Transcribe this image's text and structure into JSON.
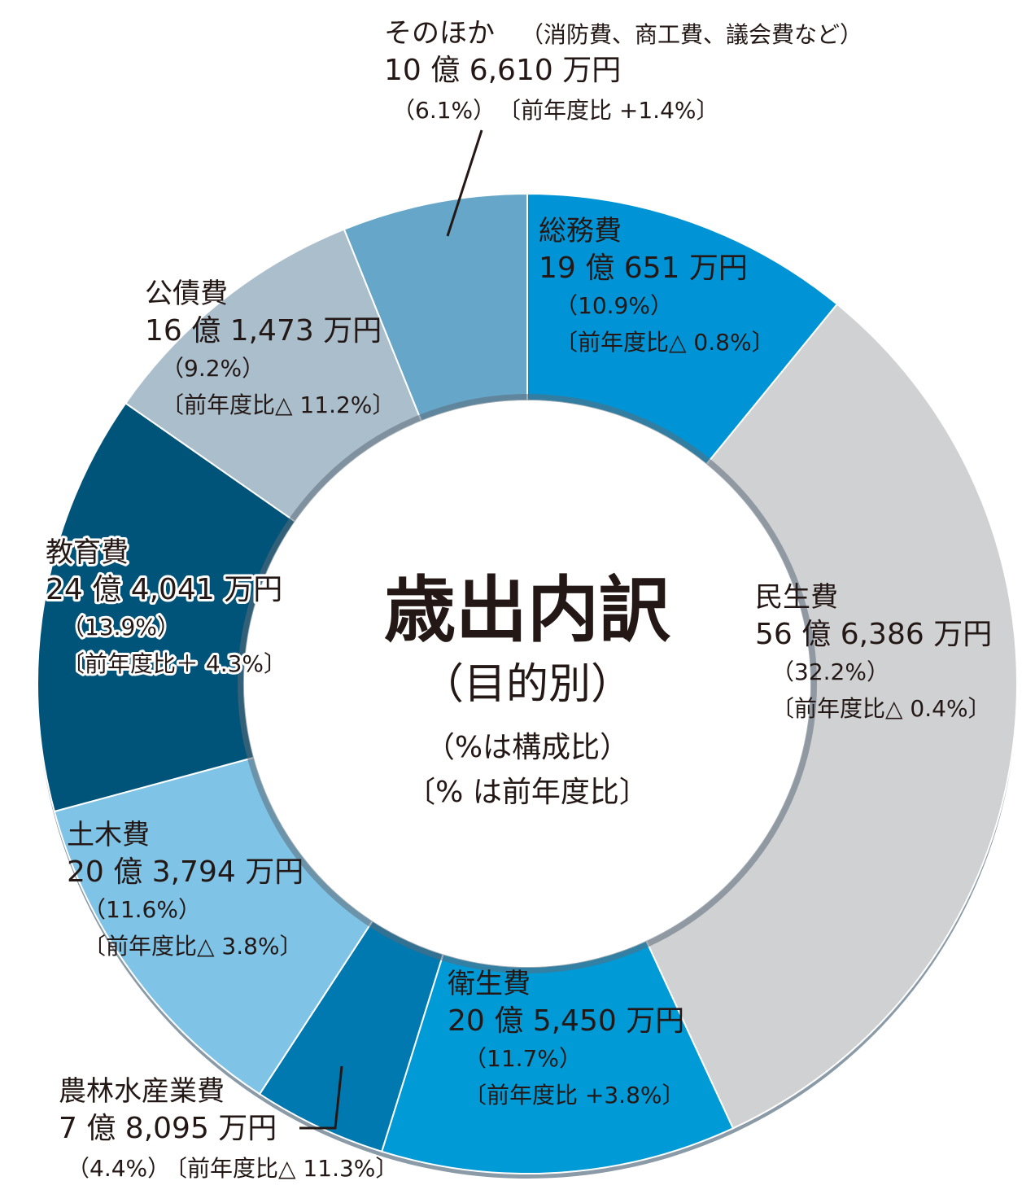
{
  "chart_data": {
    "type": "donut",
    "title": "歳出内訳",
    "subtitle": "（目的別）",
    "notes": [
      "（%は構成比）",
      "〔% は前年度比〕"
    ],
    "slices": [
      {
        "name": "総務費",
        "amount": "19 億 651 万円",
        "share": 10.9,
        "share_label": "（10.9%）",
        "yoy_label": "〔前年度比△ 0.8%〕",
        "color": "#0094d6"
      },
      {
        "name": "民生費",
        "amount": "56 億 6,386 万円",
        "share": 32.2,
        "share_label": "（32.2%）",
        "yoy_label": "〔前年度比△ 0.4%〕",
        "color": "#d0d1d3"
      },
      {
        "name": "衛生費",
        "amount": "20 億 5,450 万円",
        "share": 11.7,
        "share_label": "（11.7%）",
        "yoy_label": "〔前年度比 +3.8%〕",
        "color": "#009ad7"
      },
      {
        "name": "農林水産業費",
        "amount": "7 億 8,095 万円",
        "share": 4.4,
        "share_label": "（4.4%）",
        "yoy_label": "〔前年度比△ 11.3%〕",
        "color": "#0079b1"
      },
      {
        "name": "土木費",
        "amount": "20 億 3,794 万円",
        "share": 11.6,
        "share_label": "（11.6%）",
        "yoy_label": "〔前年度比△ 3.8%〕",
        "color": "#7fc3e6"
      },
      {
        "name": "教育費",
        "amount": "24 億 4,041 万円",
        "share": 13.9,
        "share_label": "（13.9%）",
        "yoy_label": "〔前年度比＋ 4.3%〕",
        "color": "#005379"
      },
      {
        "name": "公債費",
        "amount": "16 億 1,473 万円",
        "share": 9.2,
        "share_label": "（9.2%）",
        "yoy_label": "〔前年度比△ 11.2%〕",
        "color": "#abbecc"
      },
      {
        "name": "そのほか",
        "name_extra": "（消防費、商工費、議会費など）",
        "amount": "10 億 6,610 万円",
        "share": 6.1,
        "share_label": "（6.1%）",
        "yoy_label": "〔前年度比 +1.4%〕",
        "color": "#66a6c9"
      }
    ]
  }
}
